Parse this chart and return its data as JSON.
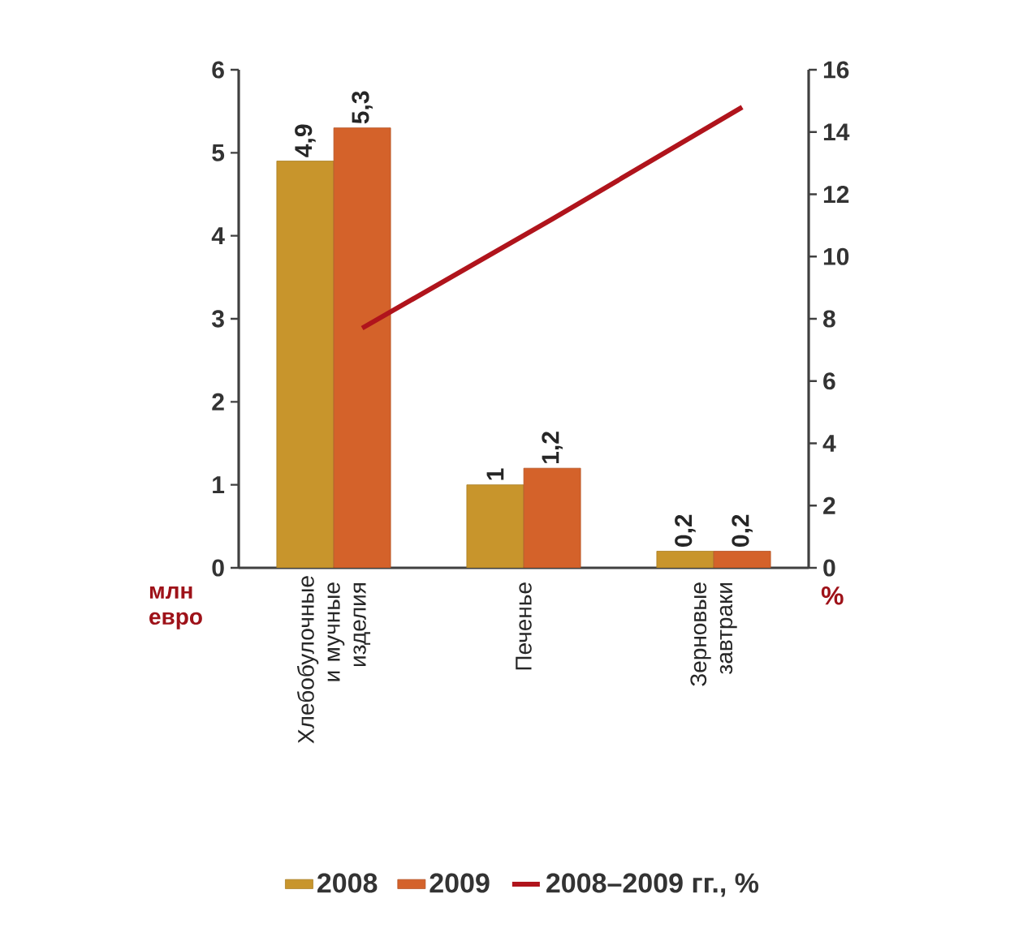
{
  "chart_data": {
    "type": "bar",
    "categories": [
      "Хлебобулочные и мучные изделия",
      "Печенье",
      "Зерновые завтраки"
    ],
    "ylabel": "млн евро",
    "y2label": "%",
    "series": [
      {
        "name": "2008",
        "color": "#c8952c",
        "values": [
          4.9,
          1,
          0.2
        ],
        "value_labels": [
          "4,9",
          "1",
          "0,2"
        ]
      },
      {
        "name": "2009",
        "color": "#d4622a",
        "values": [
          5.3,
          1.2,
          0.2
        ],
        "value_labels": [
          "5,3",
          "1,2",
          "0,2"
        ]
      },
      {
        "name": "2008–2009 гг., %",
        "type": "line",
        "axis": "y2",
        "color": "#b0141c",
        "values": [
          7.7,
          11.2,
          14.8
        ]
      }
    ],
    "ylim": [
      0,
      6
    ],
    "yticks": [
      0,
      1,
      2,
      3,
      4,
      5,
      6
    ],
    "y2lim": [
      0,
      16
    ],
    "y2ticks": [
      0,
      2,
      4,
      6,
      8,
      10,
      12,
      14,
      16
    ],
    "legend": "bottom",
    "grid": false
  }
}
